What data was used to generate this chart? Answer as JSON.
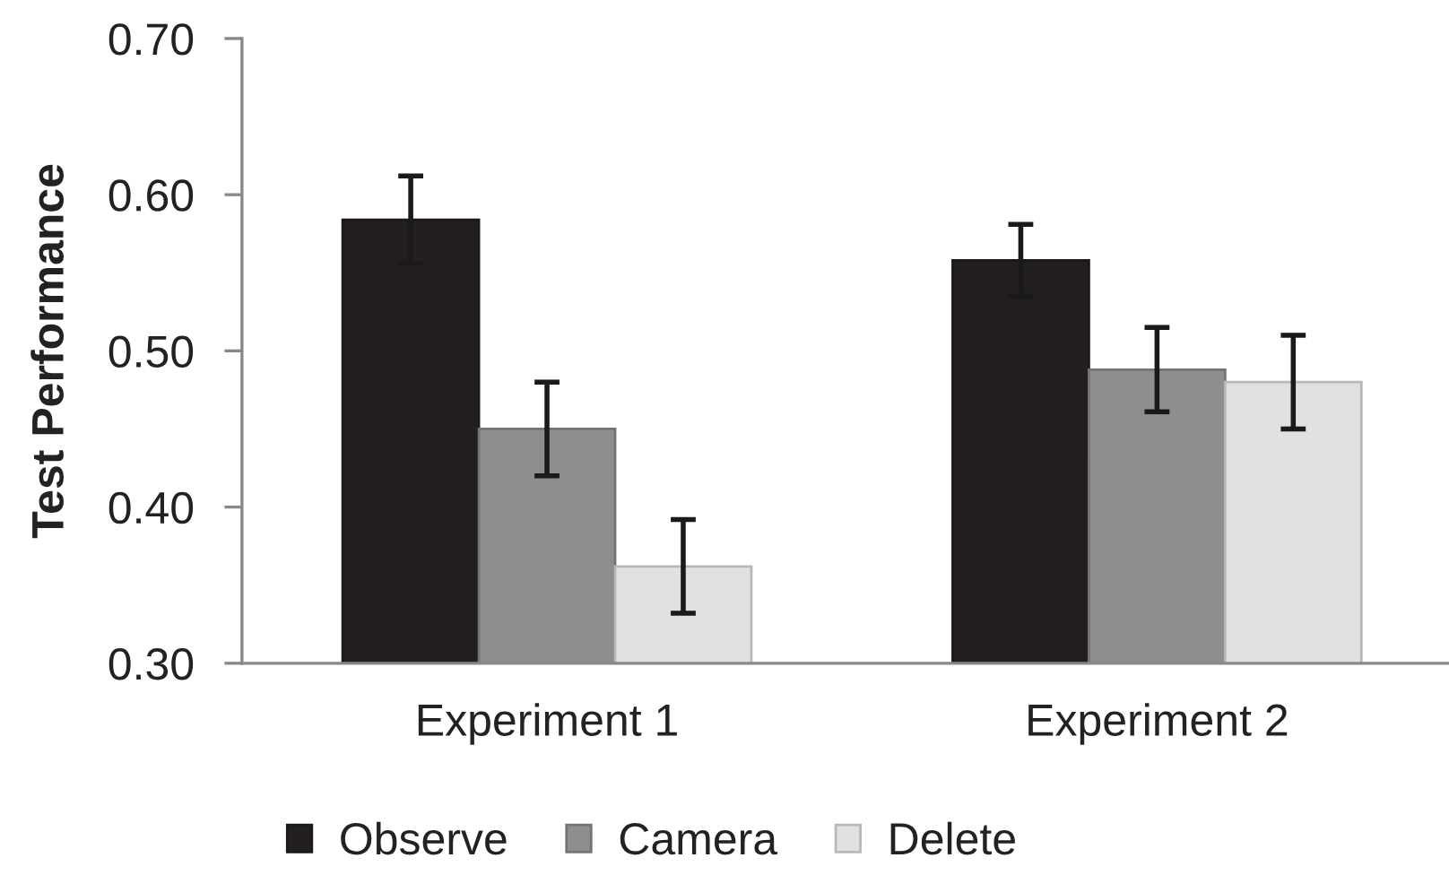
{
  "chart_data": {
    "type": "bar",
    "ylabel": "Test Performance",
    "categories": [
      "Experiment 1",
      "Experiment 2"
    ],
    "series": [
      {
        "name": "Observe",
        "color": "#231f20",
        "values": [
          0.584,
          0.558
        ],
        "errors": [
          0.028,
          0.023
        ]
      },
      {
        "name": "Camera",
        "color": "#8c8e90",
        "values": [
          0.45,
          0.488
        ],
        "errors": [
          0.03,
          0.027
        ]
      },
      {
        "name": "Delete",
        "color": "#e0e1e3",
        "values": [
          0.362,
          0.48
        ],
        "errors": [
          0.03,
          0.03
        ]
      }
    ],
    "ylim": [
      0.3,
      0.7
    ],
    "yticks": [
      {
        "value": 0.3,
        "label": "0.30"
      },
      {
        "value": 0.4,
        "label": "0.40"
      },
      {
        "value": 0.5,
        "label": "0.50"
      },
      {
        "value": 0.6,
        "label": "0.60"
      },
      {
        "value": 0.7,
        "label": "0.70"
      }
    ],
    "legend": "bottom"
  }
}
